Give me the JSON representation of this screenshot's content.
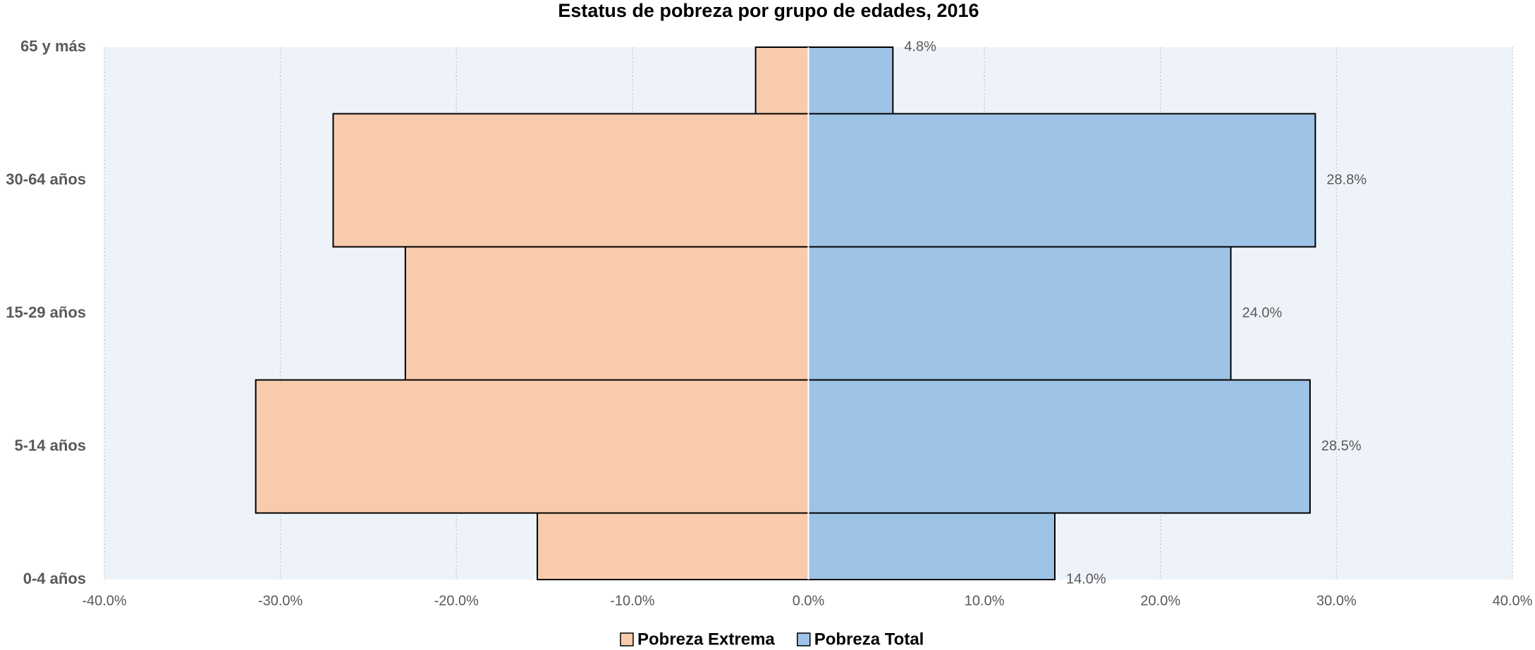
{
  "chart_data": {
    "type": "bar",
    "orientation": "horizontal",
    "title": "Estatus de pobreza por grupo de edades, 2016",
    "categories": [
      "0-4 años",
      "5-14 años",
      "15-29 años",
      "30-64 años",
      "65 y más"
    ],
    "series": [
      {
        "name": "Pobreza Extrema",
        "color": "#f8cbad",
        "values": [
          -15.4,
          -31.4,
          -22.9,
          -27.0,
          -3.0
        ]
      },
      {
        "name": "Pobreza Total",
        "color": "#9dc3e6",
        "values": [
          14.0,
          28.5,
          24.0,
          28.8,
          4.8
        ],
        "value_labels": [
          "14.0%",
          "28.5%",
          "24.0%",
          "28.8%",
          "4.8%"
        ]
      }
    ],
    "xlim": [
      -40,
      40
    ],
    "xticks": [
      {
        "value": -40,
        "label": "-40.0%"
      },
      {
        "value": -30,
        "label": "-30.0%"
      },
      {
        "value": -20,
        "label": "-20.0%"
      },
      {
        "value": -10,
        "label": "-10.0%"
      },
      {
        "value": 0,
        "label": "0.0%"
      },
      {
        "value": 10,
        "label": "10.0%"
      },
      {
        "value": 20,
        "label": "20.0%"
      },
      {
        "value": 30,
        "label": "30.0%"
      },
      {
        "value": 40,
        "label": "40.0%"
      }
    ],
    "grid": true,
    "legend": "bottom"
  }
}
